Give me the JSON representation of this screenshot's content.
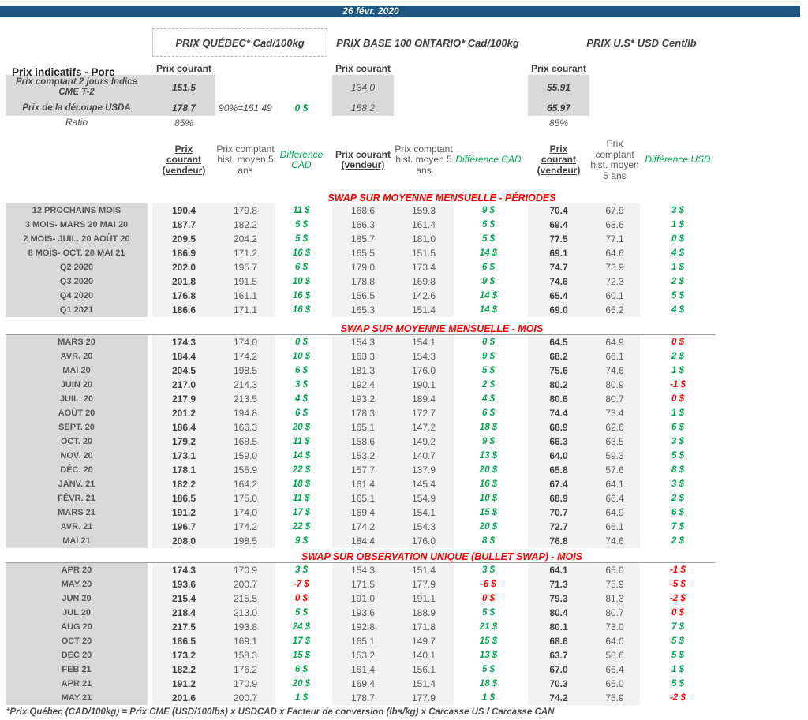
{
  "colors": {
    "bar_blue": "#1E5781",
    "label_gray": "#D9D9D9",
    "band_gray": "#F2F2F2",
    "diff_green": "#00A651",
    "diff_red": "#FF0000",
    "section_red": "#FF0000"
  },
  "header": {
    "date": "26 févr. 2020",
    "page_title": "Prix indicatifs - Porc",
    "group_quebec": "PRIX QUÉBEC* Cad/100kg",
    "group_ontario": "PRIX BASE 100 ONTARIO* Cad/100kg",
    "group_us": "PRIX U.S* USD Cent/lb",
    "prix_courant": "Prix courant"
  },
  "summary": {
    "row_cme": {
      "label": "Prix comptant 2 jours Indice CME T-2",
      "qc": "151.5",
      "on": "134.0",
      "us": "55.91"
    },
    "row_usda": {
      "label": "Prix de la découpe USDA",
      "qc": "178.7",
      "note": "90%=151.49",
      "diff": "0 $",
      "on": "158.2",
      "us": "65.97"
    },
    "row_ratio": {
      "label": "Ratio",
      "qc": "85%",
      "us": "85%"
    }
  },
  "columns": {
    "vendeur": "Prix courant (vendeur)",
    "hist": "Prix comptant hist. moyen 5 ans",
    "diff_cad": "Différence CAD",
    "diff_usd": "Différence USD"
  },
  "sections": [
    {
      "title": "SWAP SUR MOYENNE MENSUELLE - PÉRIODES",
      "top_rule": false,
      "rows": [
        {
          "label": "12 PROCHAINS MOIS",
          "cells": [
            "190.4",
            "179.8",
            "11 $",
            "168.6",
            "159.3",
            "9 $",
            "70.4",
            "67.9",
            "3 $"
          ],
          "red": []
        },
        {
          "label": "3 MOIS- MARS 20 MAI 20",
          "cells": [
            "187.7",
            "182.2",
            "5 $",
            "166.3",
            "161.4",
            "5 $",
            "69.4",
            "68.6",
            "1 $"
          ],
          "red": []
        },
        {
          "label": "2 MOIS- JUIL. 20 AOÛT 20",
          "cells": [
            "209.5",
            "204.2",
            "5 $",
            "185.7",
            "181.0",
            "5 $",
            "77.5",
            "77.1",
            "0 $"
          ],
          "red": []
        },
        {
          "label": "8 MOIS- OCT. 20 MAI 21",
          "cells": [
            "186.9",
            "171.2",
            "16 $",
            "165.5",
            "151.5",
            "14 $",
            "69.1",
            "64.6",
            "4 $"
          ],
          "red": []
        },
        {
          "label": "Q2 2020",
          "cells": [
            "202.0",
            "195.7",
            "6 $",
            "179.0",
            "173.4",
            "6 $",
            "74.7",
            "73.9",
            "1 $"
          ],
          "red": []
        },
        {
          "label": "Q3 2020",
          "cells": [
            "201.8",
            "191.5",
            "10 $",
            "178.8",
            "169.8",
            "9 $",
            "74.6",
            "72.3",
            "2 $"
          ],
          "red": []
        },
        {
          "label": "Q4 2020",
          "cells": [
            "176.8",
            "161.1",
            "16 $",
            "156.5",
            "142.6",
            "14 $",
            "65.4",
            "60.1",
            "5 $"
          ],
          "red": []
        },
        {
          "label": "Q1 2021",
          "cells": [
            "186.6",
            "171.1",
            "16 $",
            "165.3",
            "151.4",
            "14 $",
            "69.0",
            "65.2",
            "4 $"
          ],
          "red": []
        }
      ]
    },
    {
      "title": "SWAP SUR MOYENNE MENSUELLE - MOIS",
      "top_rule": true,
      "rows": [
        {
          "label": "MARS 20",
          "cells": [
            "174.3",
            "174.0",
            "0 $",
            "154.3",
            "154.1",
            "0 $",
            "64.5",
            "64.9",
            "0 $"
          ],
          "red": [
            8
          ]
        },
        {
          "label": "AVR. 20",
          "cells": [
            "184.4",
            "174.2",
            "10 $",
            "163.3",
            "154.3",
            "9 $",
            "68.2",
            "66.1",
            "2 $"
          ],
          "red": []
        },
        {
          "label": "MAI 20",
          "cells": [
            "204.5",
            "198.5",
            "6 $",
            "181.3",
            "176.0",
            "5 $",
            "75.6",
            "74.6",
            "1 $"
          ],
          "red": []
        },
        {
          "label": "JUIN 20",
          "cells": [
            "217.0",
            "214.3",
            "3 $",
            "192.4",
            "190.1",
            "2 $",
            "80.2",
            "80.9",
            "-1 $"
          ],
          "red": [
            8
          ]
        },
        {
          "label": "JUIL. 20",
          "cells": [
            "217.9",
            "213.5",
            "4 $",
            "193.2",
            "189.4",
            "4 $",
            "80.6",
            "80.7",
            "0 $"
          ],
          "red": [
            8
          ]
        },
        {
          "label": "AOÛT 20",
          "cells": [
            "201.2",
            "194.8",
            "6 $",
            "178.3",
            "172.7",
            "6 $",
            "74.4",
            "73.4",
            "1 $"
          ],
          "red": []
        },
        {
          "label": "SEPT. 20",
          "cells": [
            "186.4",
            "166.3",
            "20 $",
            "165.1",
            "147.2",
            "18 $",
            "68.9",
            "62.6",
            "6 $"
          ],
          "red": []
        },
        {
          "label": "OCT. 20",
          "cells": [
            "179.2",
            "168.5",
            "11 $",
            "158.6",
            "149.2",
            "9 $",
            "66.3",
            "63.5",
            "3 $"
          ],
          "red": []
        },
        {
          "label": "NOV. 20",
          "cells": [
            "173.1",
            "159.0",
            "14 $",
            "153.2",
            "140.7",
            "13 $",
            "64.0",
            "59.3",
            "5 $"
          ],
          "red": []
        },
        {
          "label": "DÉC. 20",
          "cells": [
            "178.1",
            "155.9",
            "22 $",
            "157.7",
            "137.9",
            "20 $",
            "65.8",
            "57.6",
            "8 $"
          ],
          "red": []
        },
        {
          "label": "JANV. 21",
          "cells": [
            "182.2",
            "164.2",
            "18 $",
            "161.4",
            "145.4",
            "16 $",
            "67.4",
            "64.1",
            "3 $"
          ],
          "red": []
        },
        {
          "label": "FÉVR. 21",
          "cells": [
            "186.5",
            "175.0",
            "11 $",
            "165.1",
            "154.9",
            "10 $",
            "68.9",
            "66.4",
            "2 $"
          ],
          "red": []
        },
        {
          "label": "MARS 21",
          "cells": [
            "191.2",
            "174.0",
            "17 $",
            "169.4",
            "154.1",
            "15 $",
            "70.7",
            "64.9",
            "6 $"
          ],
          "red": []
        },
        {
          "label": "AVR. 21",
          "cells": [
            "196.7",
            "174.2",
            "22 $",
            "174.2",
            "154.3",
            "20 $",
            "72.7",
            "66.1",
            "7 $"
          ],
          "red": []
        },
        {
          "label": "MAI 21",
          "cells": [
            "208.0",
            "198.5",
            "9 $",
            "184.4",
            "176.0",
            "8 $",
            "76.8",
            "74.6",
            "2 $"
          ],
          "red": []
        }
      ]
    },
    {
      "title": "SWAP SUR OBSERVATION UNIQUE (BULLET SWAP) - MOIS",
      "top_rule": true,
      "rows": [
        {
          "label": "APR 20",
          "cells": [
            "174.3",
            "170.9",
            "3 $",
            "154.3",
            "151.4",
            "3 $",
            "64.1",
            "65.0",
            "-1 $"
          ],
          "red": [
            8
          ]
        },
        {
          "label": "MAY 20",
          "cells": [
            "193.6",
            "200.7",
            "-7 $",
            "171.5",
            "177.9",
            "-6 $",
            "71.3",
            "75.9",
            "-5 $"
          ],
          "red": [
            2,
            5,
            8
          ]
        },
        {
          "label": "JUN 20",
          "cells": [
            "215.4",
            "215.5",
            "0 $",
            "191.0",
            "191.1",
            "0 $",
            "79.3",
            "81.3",
            "-2 $"
          ],
          "red": [
            2,
            5,
            8
          ]
        },
        {
          "label": "JUL 20",
          "cells": [
            "218.4",
            "213.0",
            "5 $",
            "193.6",
            "188.9",
            "5 $",
            "80.4",
            "80.7",
            "0 $"
          ],
          "red": [
            8
          ]
        },
        {
          "label": "AUG 20",
          "cells": [
            "217.5",
            "193.8",
            "24 $",
            "192.8",
            "171.8",
            "21 $",
            "80.1",
            "73.0",
            "7 $"
          ],
          "red": []
        },
        {
          "label": "OCT 20",
          "cells": [
            "186.5",
            "169.1",
            "17 $",
            "165.1",
            "149.7",
            "15 $",
            "68.6",
            "64.0",
            "5 $"
          ],
          "red": []
        },
        {
          "label": "DEC 20",
          "cells": [
            "173.2",
            "158.3",
            "15 $",
            "153.2",
            "140.1",
            "13 $",
            "63.7",
            "58.6",
            "5 $"
          ],
          "red": []
        },
        {
          "label": "FEB 21",
          "cells": [
            "182.2",
            "176.2",
            "6 $",
            "161.4",
            "156.1",
            "5 $",
            "67.0",
            "66.4",
            "1 $"
          ],
          "red": []
        },
        {
          "label": "APR 21",
          "cells": [
            "191.2",
            "170.9",
            "20 $",
            "169.4",
            "151.4",
            "18 $",
            "70.3",
            "65.0",
            "5 $"
          ],
          "red": []
        },
        {
          "label": "MAY 21",
          "cells": [
            "201.6",
            "200.7",
            "1 $",
            "178.7",
            "177.9",
            "1 $",
            "74.2",
            "75.9",
            "-2 $"
          ],
          "red": [
            8
          ]
        }
      ]
    }
  ],
  "footnote": "*Prix Québec (CAD/100kg) = Prix CME (USD/100lbs) x USDCAD x Facteur de conversion (lbs/kg) x Carcasse US / Carcasse CAN"
}
